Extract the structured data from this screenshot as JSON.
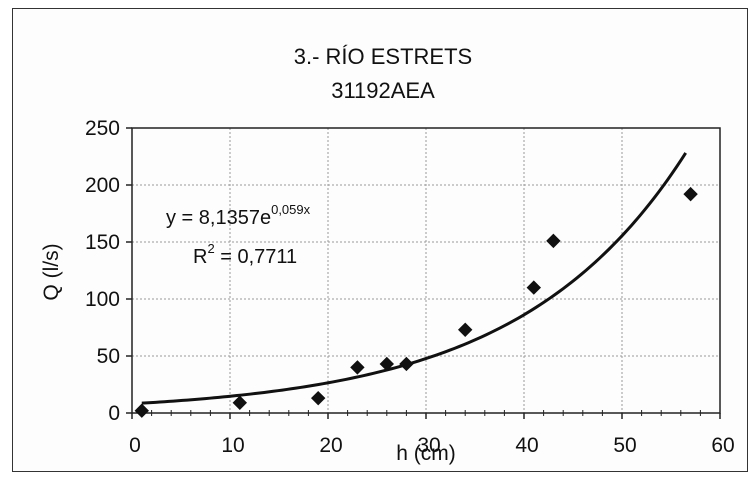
{
  "chart_data": {
    "type": "scatter",
    "title": "3.- RÍO ESTRETS",
    "subtitle": "31192AEA",
    "xlabel": "h (cm)",
    "ylabel": "Q (l/s)",
    "xlim": [
      0,
      60
    ],
    "ylim": [
      0,
      250
    ],
    "x_ticks": [
      "0",
      "10",
      "20",
      "30",
      "40",
      "50",
      "60"
    ],
    "y_ticks": [
      "0",
      "50",
      "100",
      "150",
      "200",
      "250"
    ],
    "grid": true,
    "series": [
      {
        "values": [
          {
            "x": 1,
            "y": 2
          },
          {
            "x": 11,
            "y": 9
          },
          {
            "x": 19,
            "y": 13
          },
          {
            "x": 23,
            "y": 40
          },
          {
            "x": 26,
            "y": 43
          },
          {
            "x": 28,
            "y": 43
          },
          {
            "x": 34,
            "y": 73
          },
          {
            "x": 41,
            "y": 110
          },
          {
            "x": 43,
            "y": 151
          },
          {
            "x": 57,
            "y": 192
          }
        ]
      }
    ],
    "trendline": {
      "type": "exponential",
      "a": 8.1357,
      "b": 0.059,
      "x_range": [
        1,
        56.5
      ]
    },
    "annotations": {
      "eq_prefix": "y = 8,1357e",
      "eq_exponent": "0,059x",
      "r2_prefix": "R",
      "r2_sup": "2",
      "r2_suffix": " = 0,7711"
    }
  }
}
